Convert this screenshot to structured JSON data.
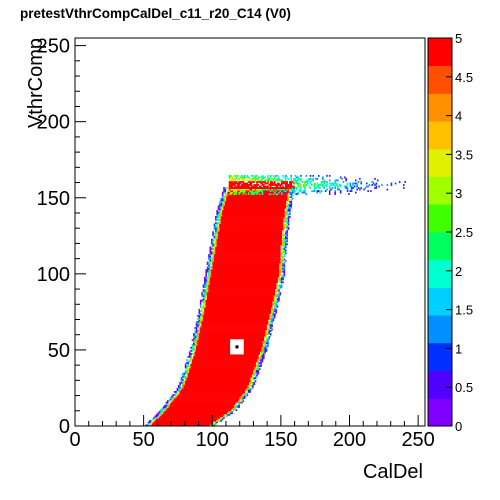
{
  "title": "pretestVthrCompCalDel_c11_r20_C14 (V0)",
  "chart_data": {
    "type": "heatmap",
    "title": "pretestVthrCompCalDel_c11_r20_C14 (V0)",
    "xlabel": "CalDel",
    "ylabel": "VthrComp",
    "xlim": [
      0,
      255
    ],
    "ylim": [
      0,
      255
    ],
    "zlim": [
      0,
      5
    ],
    "x_ticks": [
      "0",
      "50",
      "100",
      "150",
      "200",
      "250"
    ],
    "y_ticks": [
      "0",
      "50",
      "100",
      "150",
      "200",
      "250"
    ],
    "z_ticks": [
      "0",
      "0.5",
      "1",
      "1.5",
      "2",
      "2.5",
      "3",
      "3.5",
      "4",
      "4.5",
      "5"
    ],
    "grid": false,
    "colormap": [
      "#8000ff",
      "#5000ff",
      "#0030ff",
      "#0090ff",
      "#00d0ff",
      "#00ffd0",
      "#00ff60",
      "#40ff00",
      "#a0ff00",
      "#e0f000",
      "#ffc000",
      "#ff9000",
      "#ff5000",
      "#ff0000"
    ],
    "region": {
      "description_values": "cells with value 5 inside band; edges fall through colormap",
      "band_boundary_rows": [
        {
          "y": 0,
          "x_left": 55,
          "x_right": 98
        },
        {
          "y": 10,
          "x_left": 66,
          "x_right": 114
        },
        {
          "y": 25,
          "x_left": 79,
          "x_right": 126
        },
        {
          "y": 50,
          "x_left": 88,
          "x_right": 136
        },
        {
          "y": 75,
          "x_left": 94,
          "x_right": 143
        },
        {
          "y": 100,
          "x_left": 99,
          "x_right": 149
        },
        {
          "y": 125,
          "x_left": 104,
          "x_right": 151
        },
        {
          "y": 140,
          "x_left": 107,
          "x_right": 153
        },
        {
          "y": 155,
          "x_left": 112,
          "x_right": 156
        }
      ],
      "plateau": {
        "y_low": 152,
        "y_high": 164,
        "x_start": 112,
        "x_end": 255
      },
      "hole": {
        "x": 118,
        "y": 52,
        "value": 0
      }
    }
  }
}
